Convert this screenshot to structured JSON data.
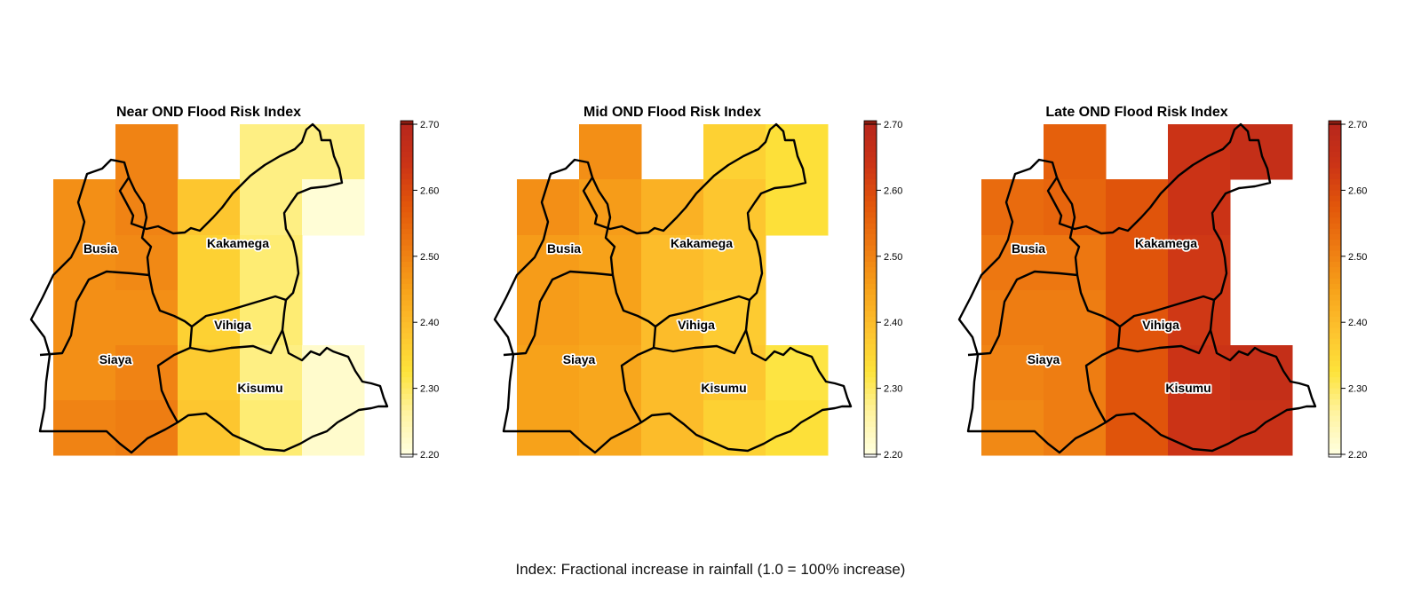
{
  "caption": "Index: Fractional increase in rainfall (1.0 = 100% increase)",
  "legend": {
    "range": [
      2.2,
      2.7
    ],
    "ticks": [
      "2.70",
      "2.60",
      "2.50",
      "2.40",
      "2.30",
      "2.20"
    ]
  },
  "counties": [
    "Busia",
    "Kakamega",
    "Vihiga",
    "Siaya",
    "Kisumu"
  ],
  "panels": [
    {
      "title": "Near OND Flood Risk Index",
      "rows": [
        [
          null,
          2.5,
          null,
          2.28,
          2.28
        ],
        [
          2.48,
          2.5,
          2.38,
          2.28,
          2.21
        ],
        [
          2.48,
          2.49,
          2.36,
          2.29,
          null
        ],
        [
          2.48,
          2.48,
          2.36,
          2.29,
          null
        ],
        [
          2.48,
          2.5,
          2.37,
          2.28,
          2.22
        ],
        [
          2.5,
          2.51,
          2.38,
          2.29,
          2.22
        ]
      ]
    },
    {
      "title": "Mid OND Flood Risk Index",
      "rows": [
        [
          null,
          2.48,
          null,
          2.36,
          2.33
        ],
        [
          2.48,
          2.46,
          2.42,
          2.38,
          2.33
        ],
        [
          2.46,
          2.45,
          2.4,
          2.38,
          null
        ],
        [
          2.46,
          2.45,
          2.4,
          2.37,
          null
        ],
        [
          2.45,
          2.44,
          2.4,
          2.38,
          2.32
        ],
        [
          2.45,
          2.44,
          2.4,
          2.36,
          2.33
        ]
      ]
    },
    {
      "title": "Late OND Flood Risk Index",
      "rows": [
        [
          null,
          2.56,
          null,
          2.64,
          2.66
        ],
        [
          2.54,
          2.55,
          2.58,
          2.64,
          null
        ],
        [
          2.52,
          2.52,
          2.58,
          2.63,
          null
        ],
        [
          2.51,
          2.51,
          2.58,
          2.63,
          null
        ],
        [
          2.5,
          2.51,
          2.58,
          2.64,
          2.66
        ],
        [
          2.49,
          2.51,
          2.58,
          2.64,
          2.65
        ]
      ]
    }
  ],
  "colors": {
    "ramp": [
      "#FFFFE0",
      "#FFF3A0",
      "#FDE33A",
      "#FDC22E",
      "#F7A21A",
      "#EE7B12",
      "#E2570A",
      "#CC3416",
      "#B7261C"
    ],
    "boundary": "#000000",
    "label_halo": "#ffffff"
  }
}
